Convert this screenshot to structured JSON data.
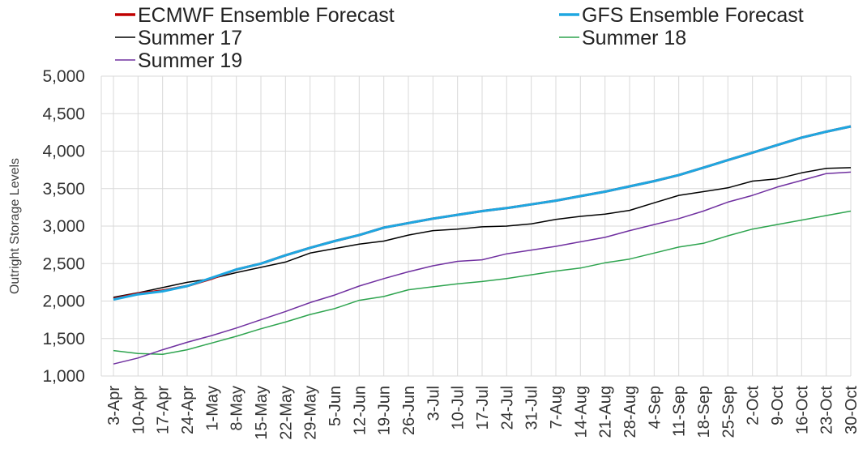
{
  "chart_data": {
    "type": "line",
    "title": "",
    "xlabel": "",
    "ylabel": "Outright Storage Levels",
    "ylim": [
      1000,
      5000
    ],
    "yticks": [
      1000,
      1500,
      2000,
      2500,
      3000,
      3500,
      4000,
      4500,
      5000
    ],
    "ytick_labels": [
      "1,000",
      "1,500",
      "2,000",
      "2,500",
      "3,000",
      "3,500",
      "4,000",
      "4,500",
      "5,000"
    ],
    "grid": true,
    "legend_position": "top",
    "categories": [
      "3-Apr",
      "10-Apr",
      "17-Apr",
      "24-Apr",
      "1-May",
      "8-May",
      "15-May",
      "22-May",
      "29-May",
      "5-Jun",
      "12-Jun",
      "19-Jun",
      "26-Jun",
      "3-Jul",
      "10-Jul",
      "17-Jul",
      "24-Jul",
      "31-Jul",
      "7-Aug",
      "14-Aug",
      "21-Aug",
      "28-Aug",
      "4-Sep",
      "11-Sep",
      "18-Sep",
      "25-Sep",
      "2-Oct",
      "9-Oct",
      "16-Oct",
      "23-Oct",
      "30-Oct"
    ],
    "series": [
      {
        "name": "ECMWF Ensemble Forecast",
        "color": "#c00000",
        "values": [
          2030,
          2100,
          2140,
          2200,
          2300,
          2420,
          2500,
          2610,
          2710,
          2800,
          2880,
          2980,
          3040,
          3100,
          3150,
          3200,
          3240,
          3290,
          3340,
          3400,
          3460,
          3530,
          3600,
          3680,
          3780,
          3880,
          3980,
          4080,
          4180,
          4260,
          4330
        ]
      },
      {
        "name": "GFS Ensemble Forecast",
        "color": "#1ea7e1",
        "values": [
          2020,
          2090,
          2130,
          2200,
          2310,
          2420,
          2500,
          2610,
          2710,
          2800,
          2880,
          2980,
          3040,
          3100,
          3150,
          3200,
          3240,
          3290,
          3340,
          3400,
          3460,
          3530,
          3600,
          3680,
          3780,
          3880,
          3980,
          4080,
          4180,
          4260,
          4330
        ]
      },
      {
        "name": "Summer 17",
        "color": "#000000",
        "values": [
          2050,
          2110,
          2180,
          2250,
          2300,
          2380,
          2450,
          2520,
          2640,
          2700,
          2760,
          2800,
          2880,
          2940,
          2960,
          2990,
          3000,
          3030,
          3090,
          3130,
          3160,
          3210,
          3310,
          3410,
          3460,
          3510,
          3600,
          3630,
          3710,
          3770,
          3780
        ]
      },
      {
        "name": "Summer 18",
        "color": "#2ea44f",
        "values": [
          1340,
          1300,
          1290,
          1350,
          1440,
          1530,
          1630,
          1720,
          1820,
          1900,
          2010,
          2060,
          2150,
          2190,
          2230,
          2260,
          2300,
          2350,
          2400,
          2440,
          2510,
          2560,
          2640,
          2720,
          2770,
          2870,
          2960,
          3020,
          3080,
          3140,
          3200
        ]
      },
      {
        "name": "Summer 19",
        "color": "#7030a0",
        "values": [
          1160,
          1240,
          1350,
          1450,
          1540,
          1640,
          1750,
          1860,
          1980,
          2080,
          2200,
          2300,
          2390,
          2470,
          2530,
          2550,
          2630,
          2680,
          2730,
          2790,
          2850,
          2940,
          3020,
          3100,
          3200,
          3320,
          3410,
          3520,
          3610,
          3700,
          3720
        ]
      }
    ]
  }
}
